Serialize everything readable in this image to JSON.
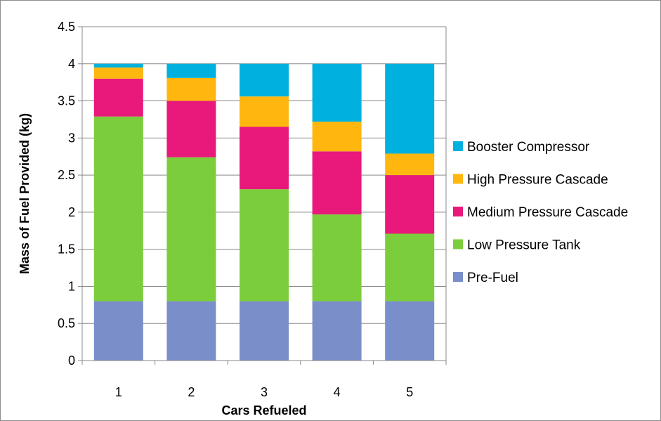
{
  "chart_data": {
    "type": "bar",
    "stacked": true,
    "categories": [
      "1",
      "2",
      "3",
      "4",
      "5"
    ],
    "xlabel": "Cars Refueled",
    "ylabel": "Mass of Fuel Provided (kg)",
    "ylim": [
      0,
      4.5
    ],
    "yticks": [
      "0",
      "0.5",
      "1",
      "1.5",
      "2",
      "2.5",
      "3",
      "3.5",
      "4",
      "4.5"
    ],
    "grid": true,
    "legend_position": "right",
    "series": [
      {
        "name": "Pre-Fuel",
        "color": "#7a8fca",
        "values": [
          0.8,
          0.8,
          0.8,
          0.8,
          0.8
        ]
      },
      {
        "name": "Low Pressure Tank",
        "color": "#7ccd3c",
        "values": [
          2.49,
          1.94,
          1.51,
          1.17,
          0.91
        ]
      },
      {
        "name": "Medium Pressure Cascade",
        "color": "#e8197a",
        "values": [
          0.51,
          0.76,
          0.84,
          0.85,
          0.79
        ]
      },
      {
        "name": "High Pressure Cascade",
        "color": "#ffb70f",
        "values": [
          0.15,
          0.31,
          0.41,
          0.4,
          0.29
        ]
      },
      {
        "name": "Booster Compressor",
        "color": "#00b0de",
        "values": [
          0.05,
          0.19,
          0.44,
          0.78,
          1.21
        ]
      }
    ]
  }
}
